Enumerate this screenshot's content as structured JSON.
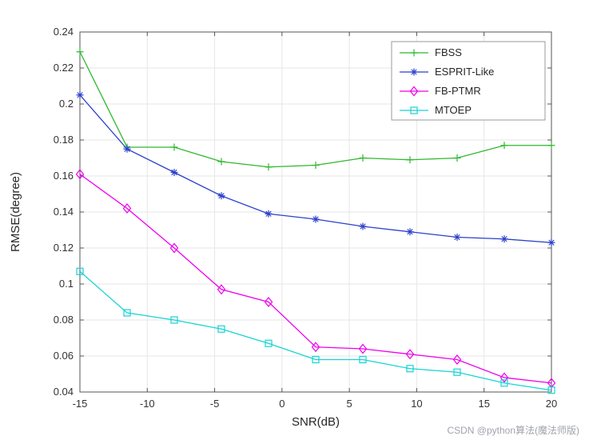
{
  "chart_data": {
    "type": "line",
    "title": "",
    "xlabel": "SNR(dB)",
    "ylabel": "RMSE(degree)",
    "xlim": [
      -15,
      20
    ],
    "ylim": [
      0.04,
      0.24
    ],
    "grid": true,
    "legend_position": "top-right",
    "xticks": [
      -15,
      -10,
      -5,
      0,
      5,
      10,
      15,
      20
    ],
    "xtick_labels": [
      "-15",
      "-10",
      "-5",
      "0",
      "5",
      "10",
      "15",
      "20"
    ],
    "yticks": [
      0.04,
      0.06,
      0.08,
      0.1,
      0.12,
      0.14,
      0.16,
      0.18,
      0.2,
      0.22,
      0.24
    ],
    "ytick_labels": [
      "0.04",
      "0.06",
      "0.08",
      "0.1",
      "0.12",
      "0.14",
      "0.16",
      "0.18",
      "0.2",
      "0.22",
      "0.24"
    ],
    "x": [
      -15,
      -11.5,
      -8,
      -4.5,
      -1,
      2.5,
      6,
      9.5,
      13,
      16.5,
      20
    ],
    "series": [
      {
        "name": "FBSS",
        "color": "#2eb82e",
        "marker": "plus",
        "values": [
          0.229,
          0.176,
          0.176,
          0.168,
          0.165,
          0.166,
          0.17,
          0.169,
          0.17,
          0.177,
          0.177
        ]
      },
      {
        "name": "ESPRIT-Like",
        "color": "#2c41cc",
        "marker": "asterisk",
        "values": [
          0.205,
          0.175,
          0.162,
          0.149,
          0.139,
          0.136,
          0.132,
          0.129,
          0.126,
          0.125,
          0.123
        ]
      },
      {
        "name": "FB-PTMR",
        "color": "#ee00ee",
        "marker": "diamond",
        "values": [
          0.161,
          0.142,
          0.12,
          0.097,
          0.09,
          0.065,
          0.064,
          0.061,
          0.058,
          0.048,
          0.045
        ]
      },
      {
        "name": "MTOEP",
        "color": "#19d3d3",
        "marker": "square",
        "values": [
          0.107,
          0.084,
          0.08,
          0.075,
          0.067,
          0.058,
          0.058,
          0.053,
          0.051,
          0.045,
          0.041
        ]
      }
    ]
  },
  "colors": {
    "axis": "#555555",
    "grid": "#e6e6e6",
    "legend_border": "#999999",
    "background": "#ffffff"
  },
  "watermark": "CSDN @python算法(魔法师版)"
}
